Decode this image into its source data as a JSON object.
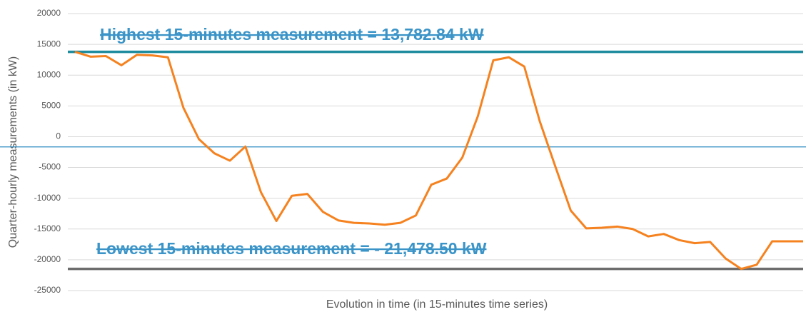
{
  "chart_data": {
    "type": "line",
    "y_label": "Quarter-hourly measurements (in kW)",
    "x_label": "Evolution in time (in 15-minutes time series)",
    "annotations": [
      "Highest 15-minutes measurement = 13,782.84 kW",
      "Lowest 15-minutes measurement = - 21,478.50 kW"
    ],
    "categories": [
      null,
      null,
      null,
      null,
      null,
      null,
      null,
      null,
      null,
      null,
      null,
      null,
      null,
      null,
      null,
      null,
      null,
      null,
      null,
      null,
      null,
      null,
      null,
      null,
      null,
      null,
      null,
      null,
      null,
      null,
      null,
      null,
      null,
      null,
      null,
      null,
      null,
      null,
      null,
      null,
      null,
      null,
      null,
      null,
      null,
      null,
      null,
      null
    ],
    "series": [
      {
        "color": "#f5821f",
        "values": [
          13783,
          13000,
          13100,
          11600,
          13300,
          13200,
          12900,
          4700,
          -400,
          -2700,
          -3900,
          -1600,
          -9000,
          -13700,
          -9600,
          -9300,
          -12200,
          -13600,
          -14000,
          -14100,
          -14300,
          -14000,
          -12800,
          -7800,
          -6800,
          -3400,
          3300,
          12400,
          12900,
          11400,
          2500,
          -4800,
          -12000,
          -14900,
          -14800,
          -14600,
          -15000,
          -16200,
          -15800,
          -16800,
          -17300,
          -17100,
          -19800,
          -21479,
          -20800,
          -17000,
          -17000,
          -17000
        ]
      }
    ],
    "reference_lines": [
      {
        "value": 13782.84,
        "color": "#1e8c9e",
        "width": 3.5
      },
      {
        "value": -21478.5,
        "color": "#6d6d6d",
        "width": 3.5
      },
      {
        "value": -1660,
        "color": "#2e8bc0",
        "width": 1.2
      }
    ],
    "ylim": [
      -25000,
      20000
    ],
    "yticks": [
      -25000,
      -20000,
      -15000,
      -10000,
      -5000,
      0,
      5000,
      10000,
      15000,
      20000
    ],
    "grid": true
  }
}
